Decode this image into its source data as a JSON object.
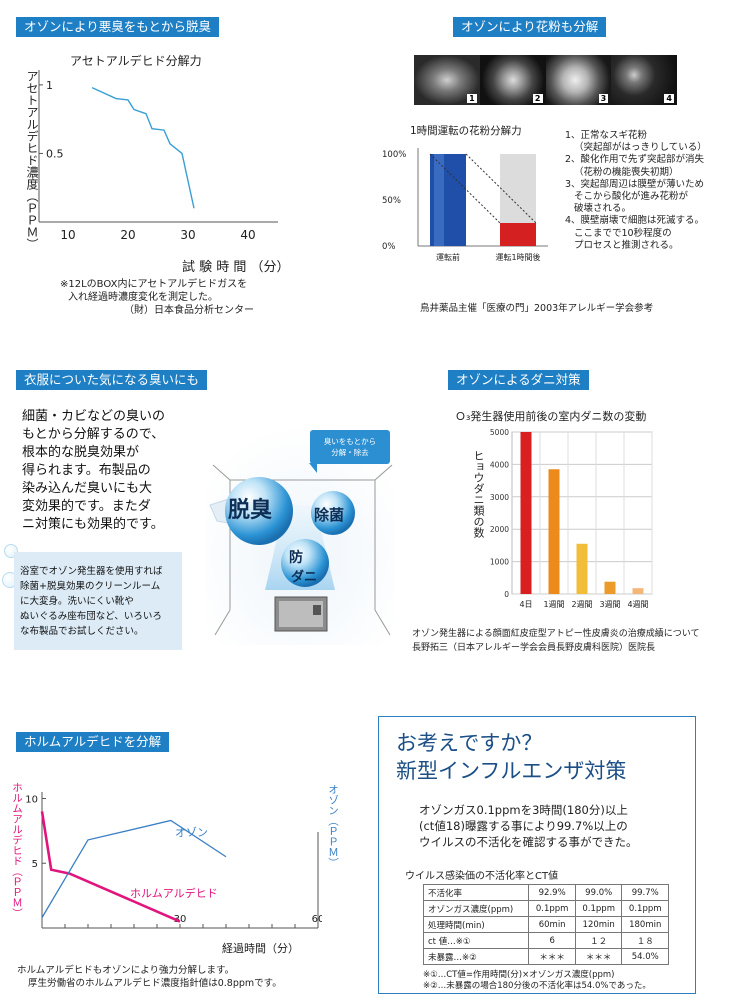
{
  "s1": {
    "header": "オゾンにより悪臭をもとから脱臭",
    "chart_title": "アセトアルデヒド分解力",
    "ylabel": "アセトアルデヒド濃度（ＰＰＭ）",
    "xlabel": "試 験 時 間 （分）",
    "note_lines": [
      "※12LのBOX内にアセトアルデヒドガスを",
      "入れ経過時濃度変化を測定した。",
      "（財）日本食品分析センター"
    ]
  },
  "s2": {
    "header": "オゾンにより花粉も分解",
    "photo_labels": [
      "1",
      "2",
      "3",
      "4"
    ],
    "chart_title": "1時間運転の花粉分解力",
    "list": [
      "1、正常なスギ花粉",
      "（突起部がはっきりしている）",
      "2、酸化作用で先ず突起部が消失",
      "（花粉の機能喪失初期）",
      "3、突起部周辺は膜壁が薄いため",
      "そこから酸化が進み花粉が",
      "破壊される。",
      "4、膜壁崩壊で細胞は死滅する。",
      "ここまでで10秒程度の",
      "プロセスと推測される。"
    ],
    "source": "鳥井薬品主催「医療の門」2003年アレルギー学会参考"
  },
  "s3": {
    "header": "衣服についた気になる臭いにも",
    "text_lines": [
      "細菌・カビなどの臭いの",
      "もとから分解するので、",
      "根本的な脱臭効果が",
      "得られます。布製品の",
      "染み込んだ臭いにも大",
      "変効果的です。またダ",
      "ニ対策にも効果的です。"
    ],
    "box_lines": [
      "浴室でオゾン発生器を使用すれば",
      "除菌+脱臭効果のクリーンルーム",
      "に大変身。洗いにくい靴や",
      "ぬいぐるみ座布団など、いろいろ",
      "な布製品でお試しください。"
    ],
    "bubble_lines": [
      "臭いをもとから",
      "分解・除去"
    ],
    "circles": [
      "脱臭",
      "除菌",
      "防",
      "ダニ"
    ]
  },
  "s4": {
    "header": "オゾンによるダニ対策",
    "chart_title": "Ｏ₃発生器使用前後の室内ダニ数の変動",
    "ylabel": "ヒョウダニ類の数",
    "caption_lines": [
      "オゾン発生器による顔面紅皮症型アトピー性皮膚炎の治療成績について",
      "長野拓三（日本アレルギー学会会員長野皮膚科医院）医院長"
    ]
  },
  "s5": {
    "header": "ホルムアルデヒドを分解",
    "left_label": "ホルムアルデヒド（ＰＰＭ）",
    "right_label": "オゾン（ＰＰＭ）",
    "xlabel": "経過時間（分）",
    "series_ozone": "オゾン",
    "series_formaldehyde": "ホルムアルデヒド",
    "note_lines": [
      "ホルムアルデヒドもオゾンにより強力分解します。",
      "厚生労働省のホルムアルデヒド濃度指針値は0.8ppmです。"
    ]
  },
  "s6": {
    "title1": "お考えですか？",
    "title2": "新型インフルエンザ対策",
    "body_lines": [
      "オゾンガス0.1ppmを3時間(180分)以上",
      "(ct値18)曝露する事により99.7%以上の",
      "ウイルスの不活化を確認する事ができた。"
    ],
    "table_title": "ウイルス感染価の不活化率とCT値",
    "table": [
      [
        "不活化率",
        "92.9%",
        "99.0%",
        "99.7%"
      ],
      [
        "オゾンガス濃度(ppm)",
        "0.1ppm",
        "0.1ppm",
        "0.1ppm"
      ],
      [
        "処理時間(min)",
        "60min",
        "120min",
        "180min"
      ],
      [
        "ct 値…※①",
        "6",
        "１２",
        "１８"
      ],
      [
        "未暴露…※②",
        "＊＊＊",
        "＊＊＊",
        "54.0%"
      ]
    ],
    "footnotes": [
      "※①…CT値=作用時間(分)×オゾンガス濃度(ppm)",
      "※②…未暴露の場合180分後の不活化率は54.0%であった。"
    ]
  },
  "chart_data": [
    {
      "type": "line",
      "title": "アセトアルデヒド分解力",
      "xlabel": "試 験 時 間 （分）",
      "ylabel": "アセトアルデヒド濃度（ＰＰＭ）",
      "x_ticks": [
        10,
        20,
        30,
        40
      ],
      "y_ticks": [
        1,
        0.5
      ],
      "xlim": [
        5,
        45
      ],
      "ylim": [
        0,
        1.05
      ],
      "series": [
        {
          "x": [
            14,
            18,
            20,
            21,
            23,
            24,
            26,
            27,
            29,
            31
          ],
          "y": [
            0.98,
            0.9,
            0.89,
            0.82,
            0.79,
            0.68,
            0.67,
            0.57,
            0.5,
            0.1
          ]
        }
      ],
      "color": "#3a9fd4"
    },
    {
      "type": "bar",
      "title": "1時間運転の花粉分解力",
      "categories": [
        "運転前",
        "運転1時間後"
      ],
      "y_ticks": [
        "100%",
        "50%",
        "0%"
      ],
      "ylim": [
        0,
        100
      ],
      "values": [
        100,
        25
      ],
      "colors": [
        "#1f4fa8",
        "#d42020"
      ]
    },
    {
      "type": "bar",
      "title": "Ｏ₃発生器使用前後の室内ダニ数の変動",
      "ylabel": "ヒョウダニ類の数",
      "categories": [
        "4日",
        "1週間",
        "2週間",
        "3週間",
        "4週間"
      ],
      "values": [
        5000,
        3850,
        1550,
        380,
        180
      ],
      "ylim": [
        0,
        5000
      ],
      "y_ticks": [
        5000,
        4000,
        3000,
        2000,
        1000,
        0
      ],
      "colors": [
        "#d91f1f",
        "#ec8a1c",
        "#f2be3a",
        "#ec9a2a",
        "#f3b879"
      ]
    },
    {
      "type": "line",
      "xlabel": "経過時間（分）",
      "x_ticks": [
        30,
        60
      ],
      "y_ticks": [
        10,
        5
      ],
      "xlim": [
        0,
        60
      ],
      "series": [
        {
          "name": "ホルムアルデヒド",
          "x": [
            0,
            2,
            6,
            30
          ],
          "y": [
            9,
            4.5,
            4.2,
            0.5
          ],
          "color": "#e2147d"
        },
        {
          "name": "オゾン",
          "x": [
            0,
            10,
            28,
            40
          ],
          "y": [
            0.8,
            6.8,
            8.3,
            5.5
          ],
          "color": "#3a7fc4"
        }
      ]
    }
  ]
}
